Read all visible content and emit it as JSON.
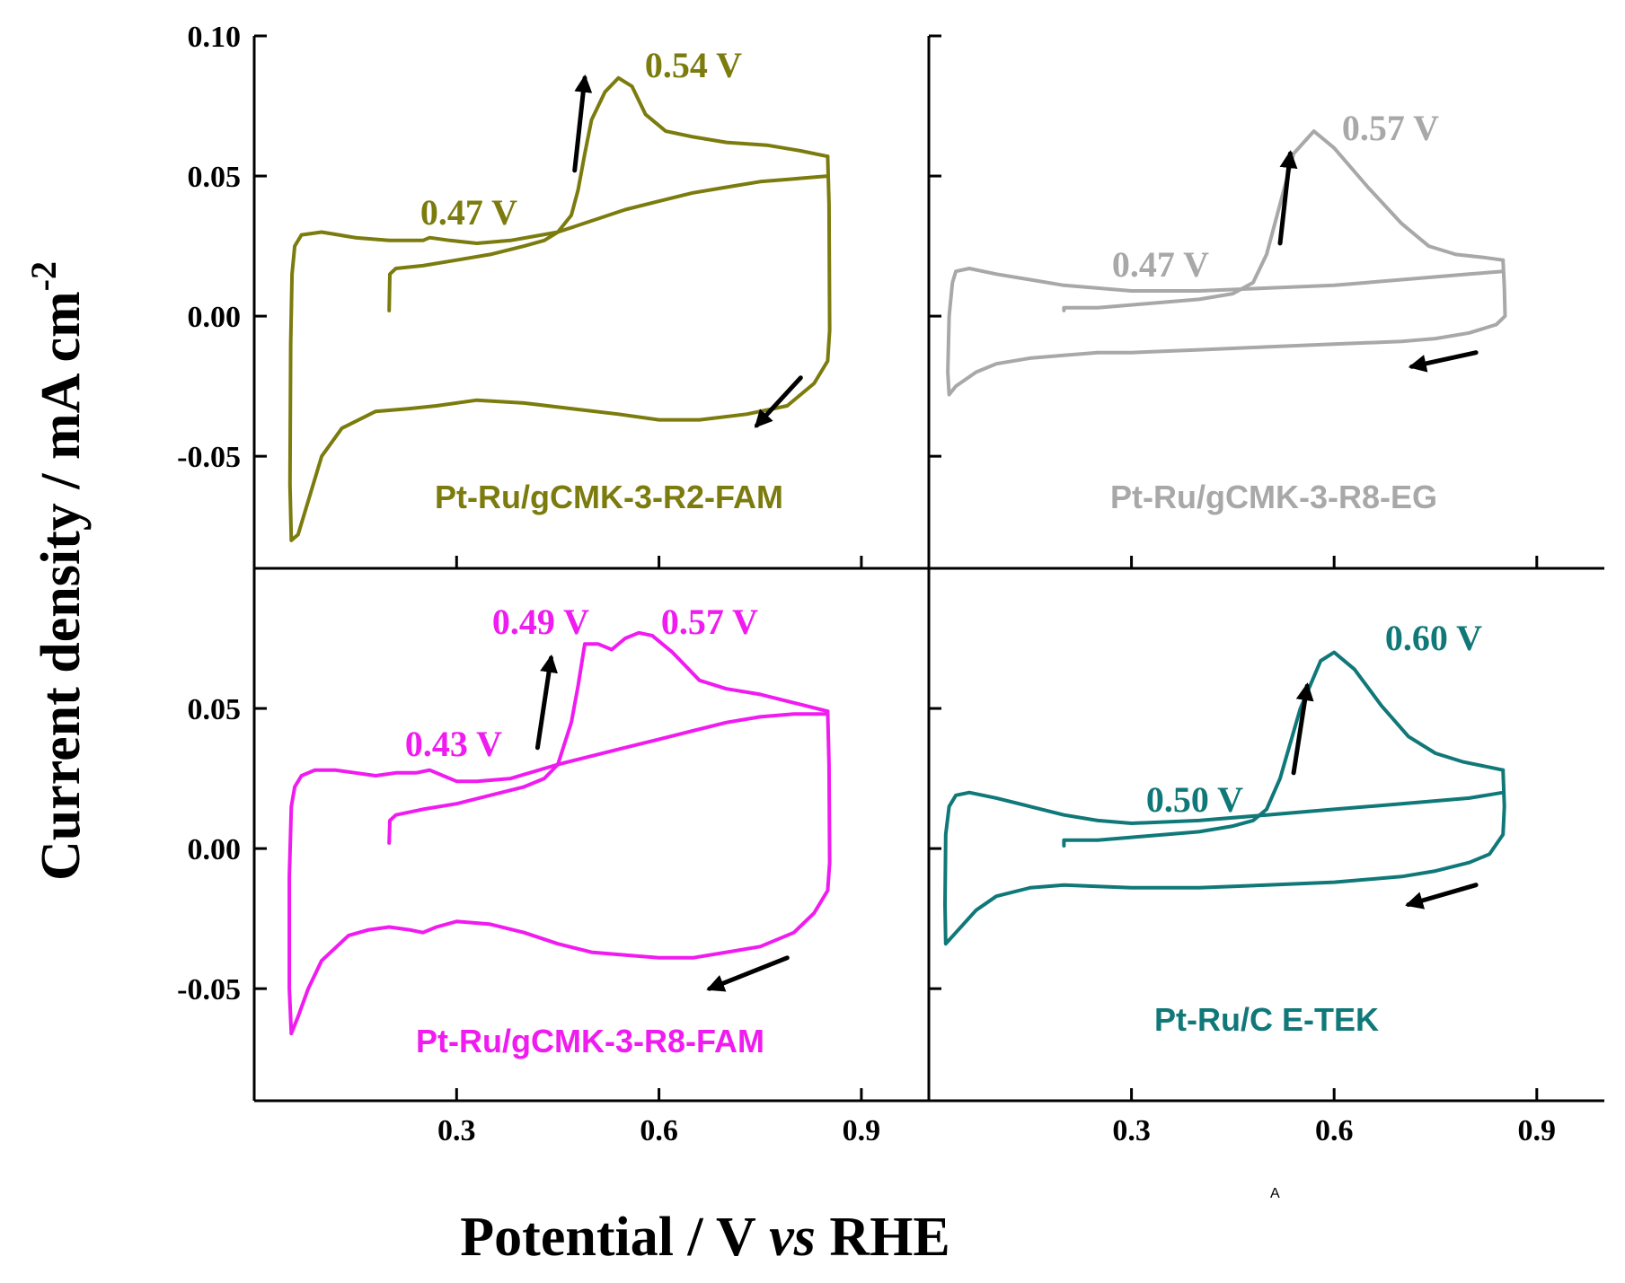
{
  "chart_data": {
    "type": "line",
    "figure_kind": "cyclic voltammograms, 2x2 panel grid",
    "xlabel": {
      "pre": "Potential / V ",
      "italic": "vs",
      "post": " RHE"
    },
    "ylabel": {
      "text": "Current density / mA cm",
      "superscript": "-2"
    },
    "xlim": [
      0.0,
      1.0
    ],
    "x_ticks": [
      0.3,
      0.6,
      0.9
    ],
    "x_tick_labels": [
      "0.3",
      "0.6",
      "0.9"
    ],
    "y_ticks": [
      -0.05,
      0.0,
      0.05,
      0.1
    ],
    "y_tick_labels": [
      "-0.05",
      "0.00",
      "0.05",
      "0.10"
    ],
    "corner_mark": "A",
    "panels": [
      {
        "id": "top-left",
        "sample": "Pt-Ru/gCMK-3-R2-FAM",
        "color": "#7b7b0e",
        "ylim": [
          -0.09,
          0.1
        ],
        "peaks": [
          {
            "label": "0.54 V",
            "x": 0.54,
            "y": 0.085
          },
          {
            "label": "0.47 V",
            "x": 0.47,
            "y": 0.034
          }
        ],
        "forward_scan": [
          [
            0.2,
            0.002
          ],
          [
            0.201,
            0.015
          ],
          [
            0.21,
            0.017
          ],
          [
            0.25,
            0.018
          ],
          [
            0.3,
            0.02
          ],
          [
            0.35,
            0.022
          ],
          [
            0.4,
            0.025
          ],
          [
            0.43,
            0.027
          ],
          [
            0.45,
            0.03
          ],
          [
            0.47,
            0.036
          ],
          [
            0.48,
            0.045
          ],
          [
            0.49,
            0.058
          ],
          [
            0.5,
            0.07
          ],
          [
            0.52,
            0.08
          ],
          [
            0.54,
            0.085
          ],
          [
            0.56,
            0.082
          ],
          [
            0.58,
            0.072
          ],
          [
            0.61,
            0.066
          ],
          [
            0.65,
            0.064
          ],
          [
            0.7,
            0.062
          ],
          [
            0.76,
            0.061
          ],
          [
            0.81,
            0.059
          ],
          [
            0.85,
            0.057
          ]
        ],
        "reverse_scan": [
          [
            0.85,
            0.057
          ],
          [
            0.852,
            0.04
          ],
          [
            0.853,
            -0.005
          ],
          [
            0.85,
            -0.016
          ],
          [
            0.83,
            -0.024
          ],
          [
            0.79,
            -0.032
          ],
          [
            0.73,
            -0.035
          ],
          [
            0.66,
            -0.037
          ],
          [
            0.6,
            -0.037
          ],
          [
            0.54,
            -0.035
          ],
          [
            0.47,
            -0.033
          ],
          [
            0.4,
            -0.031
          ],
          [
            0.33,
            -0.03
          ],
          [
            0.27,
            -0.032
          ],
          [
            0.23,
            -0.033
          ],
          [
            0.18,
            -0.034
          ],
          [
            0.13,
            -0.04
          ],
          [
            0.1,
            -0.05
          ],
          [
            0.08,
            -0.066
          ],
          [
            0.065,
            -0.078
          ],
          [
            0.055,
            -0.08
          ],
          [
            0.053,
            -0.06
          ],
          [
            0.054,
            -0.01
          ],
          [
            0.056,
            0.015
          ],
          [
            0.06,
            0.025
          ],
          [
            0.07,
            0.029
          ],
          [
            0.1,
            0.03
          ],
          [
            0.15,
            0.028
          ],
          [
            0.2,
            0.027
          ],
          [
            0.25,
            0.027
          ],
          [
            0.26,
            0.028
          ],
          [
            0.29,
            0.027
          ],
          [
            0.33,
            0.026
          ],
          [
            0.38,
            0.027
          ],
          [
            0.45,
            0.03
          ],
          [
            0.5,
            0.034
          ],
          [
            0.55,
            0.038
          ],
          [
            0.6,
            0.041
          ],
          [
            0.65,
            0.044
          ],
          [
            0.7,
            0.046
          ],
          [
            0.75,
            0.048
          ],
          [
            0.8,
            0.049
          ],
          [
            0.85,
            0.05
          ]
        ],
        "arrows": [
          {
            "direction": "forward",
            "x1": 0.475,
            "y1": 0.052,
            "x2": 0.49,
            "y2": 0.085
          },
          {
            "direction": "reverse",
            "x1": 0.81,
            "y1": -0.022,
            "x2": 0.745,
            "y2": -0.039
          }
        ]
      },
      {
        "id": "top-right",
        "sample": "Pt-Ru/gCMK-3-R8-EG",
        "color": "#a8a8a8",
        "ylim": [
          -0.09,
          0.1
        ],
        "peaks": [
          {
            "label": "0.57 V",
            "x": 0.57,
            "y": 0.066
          },
          {
            "label": "0.47 V",
            "x": 0.47,
            "y": 0.012
          }
        ],
        "forward_scan": [
          [
            0.2,
            0.002
          ],
          [
            0.2,
            0.003
          ],
          [
            0.25,
            0.003
          ],
          [
            0.3,
            0.004
          ],
          [
            0.35,
            0.005
          ],
          [
            0.4,
            0.006
          ],
          [
            0.45,
            0.008
          ],
          [
            0.48,
            0.012
          ],
          [
            0.5,
            0.022
          ],
          [
            0.52,
            0.04
          ],
          [
            0.54,
            0.058
          ],
          [
            0.57,
            0.066
          ],
          [
            0.6,
            0.06
          ],
          [
            0.65,
            0.046
          ],
          [
            0.7,
            0.033
          ],
          [
            0.74,
            0.025
          ],
          [
            0.78,
            0.022
          ],
          [
            0.82,
            0.021
          ],
          [
            0.85,
            0.02
          ]
        ],
        "reverse_scan": [
          [
            0.85,
            0.02
          ],
          [
            0.852,
            0.01
          ],
          [
            0.853,
            0.0
          ],
          [
            0.84,
            -0.003
          ],
          [
            0.8,
            -0.006
          ],
          [
            0.75,
            -0.008
          ],
          [
            0.7,
            -0.009
          ],
          [
            0.6,
            -0.01
          ],
          [
            0.5,
            -0.011
          ],
          [
            0.4,
            -0.012
          ],
          [
            0.3,
            -0.013
          ],
          [
            0.25,
            -0.013
          ],
          [
            0.2,
            -0.014
          ],
          [
            0.15,
            -0.015
          ],
          [
            0.1,
            -0.017
          ],
          [
            0.07,
            -0.02
          ],
          [
            0.04,
            -0.025
          ],
          [
            0.03,
            -0.028
          ],
          [
            0.028,
            -0.02
          ],
          [
            0.03,
            0.0
          ],
          [
            0.035,
            0.012
          ],
          [
            0.04,
            0.016
          ],
          [
            0.06,
            0.017
          ],
          [
            0.1,
            0.015
          ],
          [
            0.15,
            0.013
          ],
          [
            0.2,
            0.011
          ],
          [
            0.25,
            0.01
          ],
          [
            0.3,
            0.009
          ],
          [
            0.4,
            0.009
          ],
          [
            0.5,
            0.01
          ],
          [
            0.6,
            0.011
          ],
          [
            0.7,
            0.013
          ],
          [
            0.8,
            0.015
          ],
          [
            0.85,
            0.016
          ]
        ],
        "arrows": [
          {
            "direction": "forward",
            "x1": 0.52,
            "y1": 0.026,
            "x2": 0.535,
            "y2": 0.058
          },
          {
            "direction": "reverse",
            "x1": 0.81,
            "y1": -0.013,
            "x2": 0.715,
            "y2": -0.018
          }
        ]
      },
      {
        "id": "bottom-left",
        "sample": "Pt-Ru/gCMK-3-R8-FAM",
        "color": "#f01bf0",
        "ylim": [
          -0.09,
          0.1
        ],
        "peaks": [
          {
            "label": "0.49 V",
            "x": 0.49,
            "y": 0.073
          },
          {
            "label": "0.57 V",
            "x": 0.57,
            "y": 0.077
          },
          {
            "label": "0.43 V",
            "x": 0.43,
            "y": 0.025
          }
        ],
        "forward_scan": [
          [
            0.2,
            0.002
          ],
          [
            0.201,
            0.01
          ],
          [
            0.21,
            0.012
          ],
          [
            0.25,
            0.014
          ],
          [
            0.3,
            0.016
          ],
          [
            0.35,
            0.019
          ],
          [
            0.4,
            0.022
          ],
          [
            0.43,
            0.025
          ],
          [
            0.45,
            0.03
          ],
          [
            0.47,
            0.045
          ],
          [
            0.48,
            0.058
          ],
          [
            0.49,
            0.073
          ],
          [
            0.51,
            0.073
          ],
          [
            0.53,
            0.071
          ],
          [
            0.55,
            0.075
          ],
          [
            0.57,
            0.077
          ],
          [
            0.59,
            0.076
          ],
          [
            0.62,
            0.07
          ],
          [
            0.66,
            0.06
          ],
          [
            0.7,
            0.057
          ],
          [
            0.75,
            0.055
          ],
          [
            0.8,
            0.052
          ],
          [
            0.85,
            0.049
          ]
        ],
        "reverse_scan": [
          [
            0.85,
            0.049
          ],
          [
            0.852,
            0.03
          ],
          [
            0.853,
            -0.005
          ],
          [
            0.85,
            -0.015
          ],
          [
            0.83,
            -0.023
          ],
          [
            0.8,
            -0.03
          ],
          [
            0.75,
            -0.035
          ],
          [
            0.7,
            -0.037
          ],
          [
            0.65,
            -0.039
          ],
          [
            0.6,
            -0.039
          ],
          [
            0.55,
            -0.038
          ],
          [
            0.5,
            -0.037
          ],
          [
            0.45,
            -0.034
          ],
          [
            0.4,
            -0.03
          ],
          [
            0.35,
            -0.027
          ],
          [
            0.3,
            -0.026
          ],
          [
            0.27,
            -0.028
          ],
          [
            0.25,
            -0.03
          ],
          [
            0.23,
            -0.029
          ],
          [
            0.2,
            -0.028
          ],
          [
            0.17,
            -0.029
          ],
          [
            0.14,
            -0.031
          ],
          [
            0.1,
            -0.04
          ],
          [
            0.08,
            -0.05
          ],
          [
            0.065,
            -0.06
          ],
          [
            0.055,
            -0.066
          ],
          [
            0.052,
            -0.05
          ],
          [
            0.052,
            -0.01
          ],
          [
            0.055,
            0.015
          ],
          [
            0.06,
            0.022
          ],
          [
            0.07,
            0.026
          ],
          [
            0.09,
            0.028
          ],
          [
            0.12,
            0.028
          ],
          [
            0.15,
            0.027
          ],
          [
            0.18,
            0.026
          ],
          [
            0.21,
            0.027
          ],
          [
            0.24,
            0.027
          ],
          [
            0.26,
            0.028
          ],
          [
            0.28,
            0.026
          ],
          [
            0.3,
            0.024
          ],
          [
            0.33,
            0.024
          ],
          [
            0.38,
            0.025
          ],
          [
            0.45,
            0.03
          ],
          [
            0.5,
            0.033
          ],
          [
            0.55,
            0.036
          ],
          [
            0.6,
            0.039
          ],
          [
            0.65,
            0.042
          ],
          [
            0.7,
            0.045
          ],
          [
            0.75,
            0.047
          ],
          [
            0.8,
            0.048
          ],
          [
            0.85,
            0.048
          ]
        ],
        "arrows": [
          {
            "direction": "forward",
            "x1": 0.42,
            "y1": 0.036,
            "x2": 0.44,
            "y2": 0.068
          },
          {
            "direction": "reverse",
            "x1": 0.79,
            "y1": -0.039,
            "x2": 0.675,
            "y2": -0.05
          }
        ]
      },
      {
        "id": "bottom-right",
        "sample": "Pt-Ru/C E-TEK",
        "color": "#107878",
        "ylim": [
          -0.09,
          0.1
        ],
        "peaks": [
          {
            "label": "0.60 V",
            "x": 0.6,
            "y": 0.07
          },
          {
            "label": "0.50 V",
            "x": 0.5,
            "y": 0.015
          }
        ],
        "forward_scan": [
          [
            0.2,
            0.001
          ],
          [
            0.2,
            0.003
          ],
          [
            0.25,
            0.003
          ],
          [
            0.3,
            0.004
          ],
          [
            0.35,
            0.005
          ],
          [
            0.4,
            0.006
          ],
          [
            0.45,
            0.008
          ],
          [
            0.48,
            0.01
          ],
          [
            0.5,
            0.014
          ],
          [
            0.52,
            0.025
          ],
          [
            0.55,
            0.05
          ],
          [
            0.58,
            0.067
          ],
          [
            0.6,
            0.07
          ],
          [
            0.63,
            0.064
          ],
          [
            0.67,
            0.051
          ],
          [
            0.71,
            0.04
          ],
          [
            0.75,
            0.034
          ],
          [
            0.79,
            0.031
          ],
          [
            0.83,
            0.029
          ],
          [
            0.85,
            0.028
          ]
        ],
        "reverse_scan": [
          [
            0.85,
            0.028
          ],
          [
            0.852,
            0.015
          ],
          [
            0.85,
            0.005
          ],
          [
            0.83,
            -0.002
          ],
          [
            0.8,
            -0.005
          ],
          [
            0.75,
            -0.008
          ],
          [
            0.7,
            -0.01
          ],
          [
            0.6,
            -0.012
          ],
          [
            0.5,
            -0.013
          ],
          [
            0.4,
            -0.014
          ],
          [
            0.3,
            -0.014
          ],
          [
            0.2,
            -0.013
          ],
          [
            0.15,
            -0.014
          ],
          [
            0.1,
            -0.017
          ],
          [
            0.07,
            -0.022
          ],
          [
            0.04,
            -0.03
          ],
          [
            0.025,
            -0.034
          ],
          [
            0.024,
            -0.02
          ],
          [
            0.025,
            0.005
          ],
          [
            0.03,
            0.015
          ],
          [
            0.04,
            0.019
          ],
          [
            0.06,
            0.02
          ],
          [
            0.1,
            0.018
          ],
          [
            0.15,
            0.015
          ],
          [
            0.2,
            0.012
          ],
          [
            0.25,
            0.01
          ],
          [
            0.3,
            0.009
          ],
          [
            0.4,
            0.01
          ],
          [
            0.5,
            0.012
          ],
          [
            0.6,
            0.014
          ],
          [
            0.7,
            0.016
          ],
          [
            0.8,
            0.018
          ],
          [
            0.85,
            0.02
          ]
        ],
        "arrows": [
          {
            "direction": "forward",
            "x1": 0.54,
            "y1": 0.027,
            "x2": 0.56,
            "y2": 0.058
          },
          {
            "direction": "reverse",
            "x1": 0.81,
            "y1": -0.013,
            "x2": 0.71,
            "y2": -0.02
          }
        ]
      }
    ]
  }
}
